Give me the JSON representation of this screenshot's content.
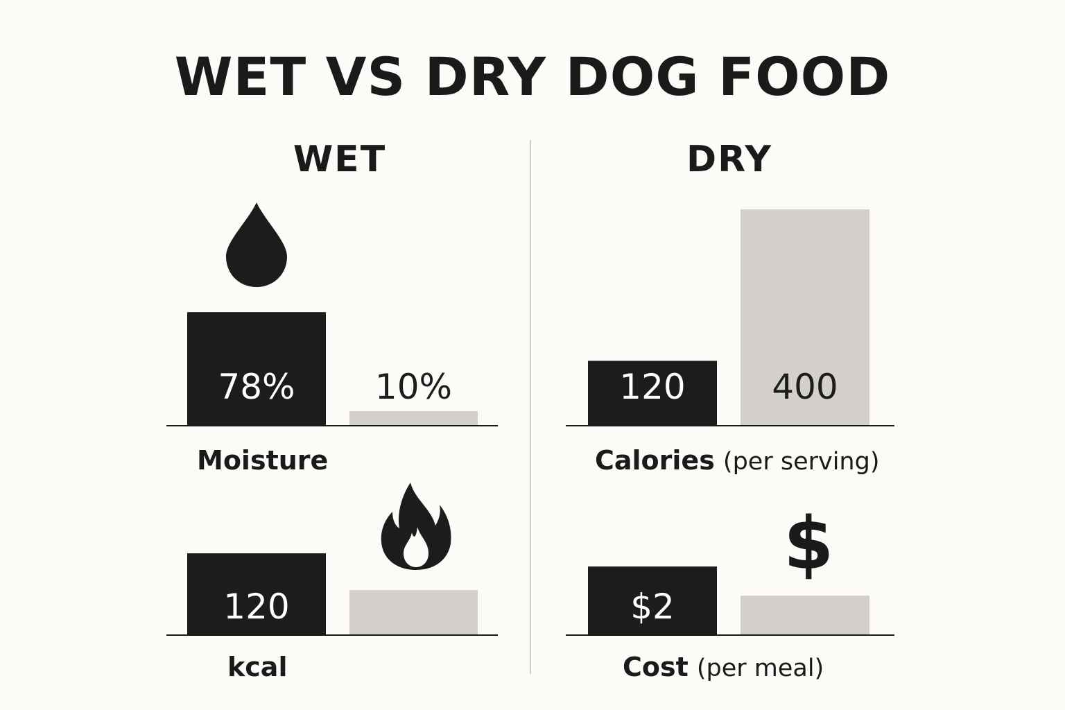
{
  "title": "WET VS DRY DOG FOOD",
  "columns": {
    "wet": "WET",
    "dry": "DRY"
  },
  "icons": {
    "moisture": "water-drop-icon",
    "calories": "flame-icon",
    "cost": "dollar-sign-icon",
    "dollar_glyph": "$"
  },
  "colors": {
    "wet": "#1c1c1c",
    "dry": "#d3cfca",
    "background": "#fcfbf7"
  },
  "chart_data": [
    {
      "type": "bar",
      "title": "Moisture",
      "label_main": "Moisture",
      "label_sub": "",
      "series": [
        {
          "name": "Wet",
          "value": 78,
          "label": "78%"
        },
        {
          "name": "Dry",
          "value": 10,
          "label": "10%"
        }
      ],
      "ylim": [
        0,
        100
      ]
    },
    {
      "type": "bar",
      "title": "Calories (per serving)",
      "label_main": "Calories",
      "label_sub": "(per serving)",
      "series": [
        {
          "name": "Wet",
          "value": 120,
          "label": "120"
        },
        {
          "name": "Dry",
          "value": 400,
          "label": "400"
        }
      ],
      "ylim": [
        0,
        400
      ]
    },
    {
      "type": "bar",
      "title": "kcal",
      "label_main": "kcal",
      "label_sub": "",
      "series": [
        {
          "name": "Wet",
          "value": 120,
          "label": "120"
        },
        {
          "name": "Dry",
          "value": 66,
          "label": ""
        }
      ],
      "ylim": [
        0,
        120
      ]
    },
    {
      "type": "bar",
      "title": "Cost (per meal)",
      "label_main": "Cost",
      "label_sub": "(per meal)",
      "series": [
        {
          "name": "Wet",
          "value": 2,
          "label": "$2"
        },
        {
          "name": "Dry",
          "value": 1.15,
          "label": ""
        }
      ],
      "ylim": [
        0,
        2
      ]
    }
  ]
}
